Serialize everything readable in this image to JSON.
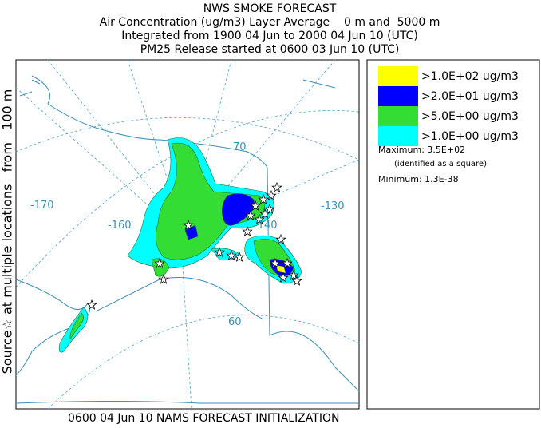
{
  "header": {
    "title": "NWS SMOKE FORECAST",
    "lines": [
      "Air Concentration (ug/m3) Layer Average    0 m and  5000 m",
      "Integrated from 1900 04 Jun to 2000 04 Jun 10 (UTC)",
      "PM25 Release started at 0600 03 Jun 10 (UTC)"
    ]
  },
  "side_label": "Source☆ at multiple locations   from   100 m",
  "footer": "0600 04 Jun 10 NAMS FORECAST INITIALIZATION",
  "map": {
    "labels": [
      "-170",
      "-160",
      "-140",
      "-130",
      "70",
      "60"
    ]
  },
  "legend": {
    "items": [
      {
        "label": ">1.0E+02 ug/m3",
        "color": "#ffff00"
      },
      {
        "label": ">2.0E+01 ug/m3",
        "color": "#0000ff"
      },
      {
        "label": ">5.0E+00 ug/m3",
        "color": "#33dd33"
      },
      {
        "label": ">1.0E+00 ug/m3",
        "color": "#00ffff"
      }
    ],
    "maximum": "Maximum: 3.5E+02",
    "note": "(identified as a square)",
    "minimum": "Minimum: 1.3E-38"
  }
}
